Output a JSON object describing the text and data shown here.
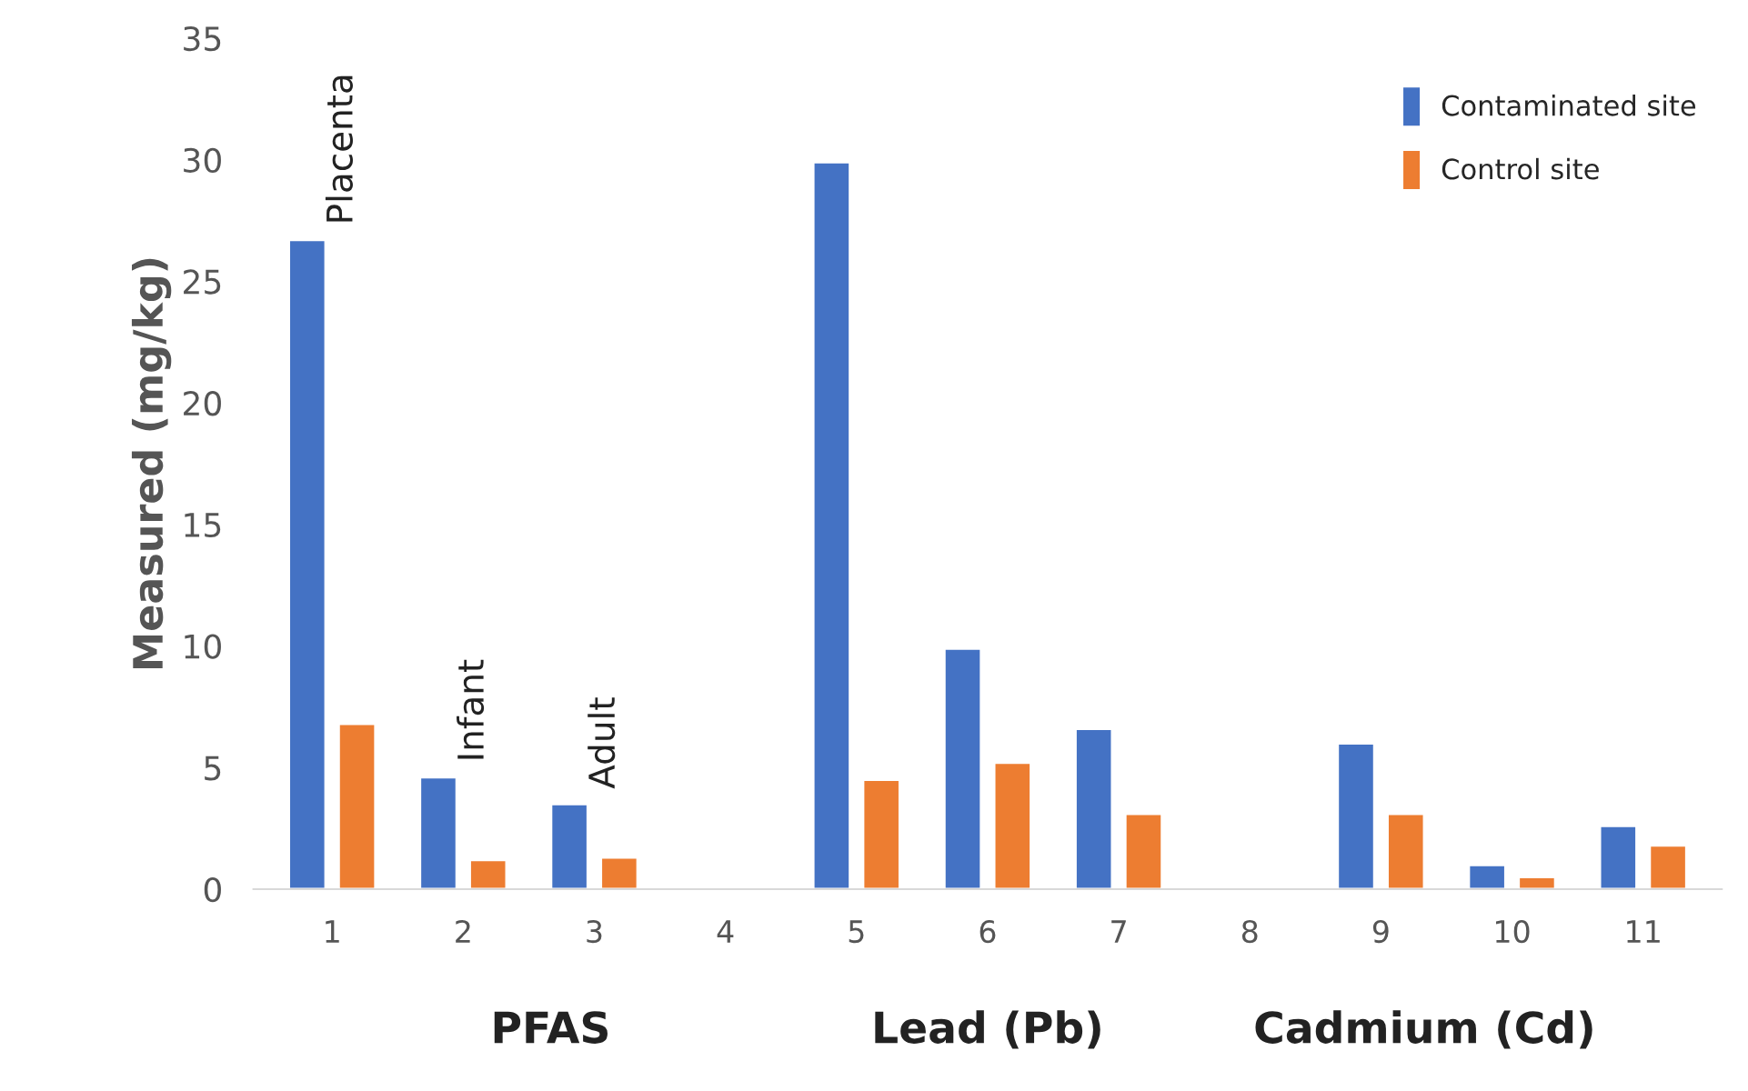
{
  "chart_data": {
    "type": "bar",
    "ylabel": "Measured (mg/kg)",
    "categories": [
      "1",
      "2",
      "3",
      "4",
      "5",
      "6",
      "7",
      "8",
      "9",
      "10",
      "11"
    ],
    "series": [
      {
        "name": "Contaminated site",
        "color": "#4472c4",
        "values": [
          26.7,
          4.6,
          3.5,
          null,
          29.9,
          9.9,
          6.6,
          null,
          6.0,
          1.0,
          2.6
        ]
      },
      {
        "name": "Control site",
        "color": "#ed7d31",
        "values": [
          6.8,
          1.2,
          1.3,
          null,
          4.5,
          5.2,
          3.1,
          null,
          3.1,
          0.5,
          1.8
        ]
      }
    ],
    "ylim": [
      0,
      35
    ],
    "yticks": [
      0,
      5,
      10,
      15,
      20,
      25,
      30,
      35
    ],
    "grid": false,
    "legend": "top right",
    "annotations": [
      {
        "text": "Placenta",
        "x": "1",
        "y": 26.7
      },
      {
        "text": "Infant",
        "x": "2",
        "y": 4.6
      },
      {
        "text": "Adult",
        "x": "3",
        "y": 3.5
      },
      "PFAS",
      "Lead (Pb)",
      "Cadmium (Cd)"
    ]
  }
}
